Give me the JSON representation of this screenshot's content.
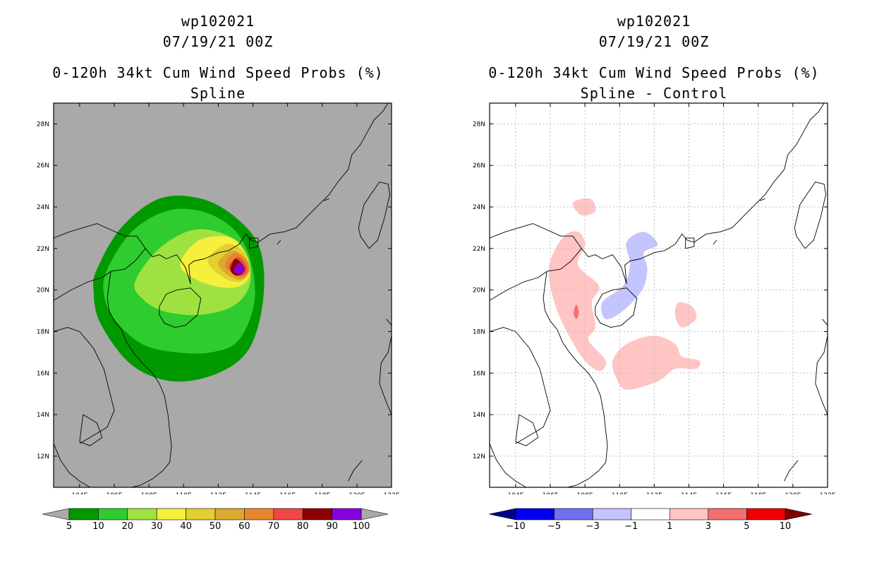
{
  "colors": {
    "background_gray": "#a9a9a9",
    "coast": "#000000",
    "grid": "#c0c0c0"
  },
  "chart_data": [
    {
      "type": "heatmap",
      "storm_id": "wp102021",
      "datetime": "07/19/21 00Z",
      "title": "0-120h 34kt Cum Wind Speed Probs (%)",
      "subtitle": "Spline",
      "x_ticks": [
        "104E",
        "106E",
        "108E",
        "110E",
        "112E",
        "114E",
        "116E",
        "118E",
        "120E",
        "122E"
      ],
      "y_ticks": [
        "28N",
        "26N",
        "24N",
        "22N",
        "20N",
        "18N",
        "16N",
        "14N",
        "12N"
      ],
      "xlim": [
        102.5,
        122
      ],
      "ylim": [
        10.5,
        29
      ],
      "grid": false,
      "colorbar": {
        "labels": [
          "5",
          "10",
          "20",
          "30",
          "40",
          "50",
          "60",
          "70",
          "80",
          "90",
          "100"
        ],
        "colors": [
          "#009900",
          "#2ecc2e",
          "#9ee242",
          "#f4f03c",
          "#e2cf32",
          "#dba830",
          "#e8862b",
          "#ef4747",
          "#8c0000",
          "#8800dd"
        ],
        "under_color": "#a9a9a9",
        "over_color": "#a9a9a9"
      },
      "contours": [
        {
          "level": 5,
          "points": [
            [
              105,
              21
            ],
            [
              106.4,
              23
            ],
            [
              108.6,
              24.4
            ],
            [
              111,
              24.4
            ],
            [
              113,
              23.5
            ],
            [
              114.4,
              22
            ],
            [
              114.6,
              19.6
            ],
            [
              113.8,
              17.2
            ],
            [
              112,
              16
            ],
            [
              109.4,
              15.6
            ],
            [
              107,
              16.4
            ],
            [
              105.2,
              18.4
            ],
            [
              104.8,
              20
            ]
          ]
        },
        {
          "level": 10,
          "points": [
            [
              105.6,
              21
            ],
            [
              107,
              22.8
            ],
            [
              109,
              23.8
            ],
            [
              111,
              23.8
            ],
            [
              112.8,
              23
            ],
            [
              113.8,
              21.6
            ],
            [
              114.1,
              19.5
            ],
            [
              113.2,
              17.6
            ],
            [
              111.6,
              17
            ],
            [
              109.6,
              17
            ],
            [
              107.6,
              17.4
            ],
            [
              106,
              18.6
            ],
            [
              105.4,
              19.8
            ]
          ]
        },
        {
          "level": 20,
          "points": [
            [
              107.2,
              20.4
            ],
            [
              108.6,
              22
            ],
            [
              110.6,
              22.9
            ],
            [
              112.6,
              22.6
            ],
            [
              113.7,
              21.6
            ],
            [
              113.8,
              20.2
            ],
            [
              112.8,
              19.2
            ],
            [
              110.8,
              18.8
            ],
            [
              108.8,
              19
            ],
            [
              107.6,
              19.6
            ]
          ]
        },
        {
          "level": 30,
          "points": [
            [
              109.8,
              21.2
            ],
            [
              110.9,
              22.4
            ],
            [
              112.8,
              22.5
            ],
            [
              113.7,
              21.5
            ],
            [
              113.7,
              20.5
            ],
            [
              112.7,
              20.1
            ],
            [
              111,
              20.4
            ]
          ]
        },
        {
          "level": 40,
          "points": [
            [
              111.4,
              21.4
            ],
            [
              112.4,
              22.2
            ],
            [
              113.4,
              21.9
            ],
            [
              113.8,
              21
            ],
            [
              113.3,
              20.4
            ],
            [
              112.3,
              20.6
            ]
          ]
        },
        {
          "level": 50,
          "points": [
            [
              112,
              21.3
            ],
            [
              112.8,
              21.9
            ],
            [
              113.6,
              21.5
            ],
            [
              113.8,
              20.9
            ],
            [
              113.3,
              20.5
            ],
            [
              112.6,
              20.7
            ]
          ]
        },
        {
          "level": 60,
          "points": [
            [
              112.4,
              21.2
            ],
            [
              113,
              21.8
            ],
            [
              113.7,
              21.3
            ],
            [
              113.7,
              20.8
            ],
            [
              113.2,
              20.6
            ]
          ]
        },
        {
          "level": 70,
          "points": [
            [
              112.6,
              21.1
            ],
            [
              113.1,
              21.6
            ],
            [
              113.6,
              21.2
            ],
            [
              113.6,
              20.8
            ],
            [
              113.1,
              20.7
            ]
          ]
        },
        {
          "level": 80,
          "points": [
            [
              112.7,
              21
            ],
            [
              113,
              21.5
            ],
            [
              113.5,
              21.1
            ],
            [
              113.4,
              20.8
            ],
            [
              113,
              20.7
            ]
          ]
        },
        {
          "level": 90,
          "points": [
            [
              112.9,
              20.9
            ],
            [
              113.2,
              21.3
            ],
            [
              113.5,
              21
            ],
            [
              113.3,
              20.8
            ]
          ]
        }
      ]
    },
    {
      "type": "heatmap",
      "storm_id": "wp102021",
      "datetime": "07/19/21 00Z",
      "title": "0-120h 34kt Cum Wind Speed Probs (%)",
      "subtitle": "Spline - Control",
      "x_ticks": [
        "104E",
        "106E",
        "108E",
        "110E",
        "112E",
        "114E",
        "116E",
        "118E",
        "120E",
        "122E"
      ],
      "y_ticks": [
        "28N",
        "26N",
        "24N",
        "22N",
        "20N",
        "18N",
        "16N",
        "14N",
        "12N"
      ],
      "xlim": [
        102.5,
        122
      ],
      "ylim": [
        10.5,
        29
      ],
      "grid": true,
      "colorbar": {
        "labels": [
          "-10",
          "-5",
          "-3",
          "-1",
          "1",
          "3",
          "5",
          "10"
        ],
        "colors": [
          "#0000ee",
          "#7070f0",
          "#c4c4ff",
          "#ffffff",
          "#ffc4c4",
          "#f27070",
          "#ee0000"
        ],
        "under_color": "#00008b",
        "over_color": "#7f0000"
      },
      "contours": [
        {
          "level": 1,
          "points": [
            [
              106.8,
              22.6
            ],
            [
              107.6,
              22.8
            ],
            [
              108,
              22.2
            ],
            [
              107.6,
              21.2
            ],
            [
              108.8,
              20.2
            ],
            [
              108.4,
              19.4
            ],
            [
              108.6,
              18.2
            ],
            [
              108.2,
              17.6
            ],
            [
              109.2,
              16.6
            ],
            [
              108.8,
              16.1
            ],
            [
              107.8,
              16.8
            ],
            [
              106.6,
              18.6
            ],
            [
              106,
              20.2
            ],
            [
              106,
              21.4
            ]
          ]
        },
        {
          "level": 1,
          "points": [
            [
              107.3,
              24.2
            ],
            [
              108.3,
              24.4
            ],
            [
              108.6,
              23.8
            ],
            [
              107.8,
              23.6
            ]
          ]
        },
        {
          "level": 1,
          "points": [
            [
              109.6,
              16.6
            ],
            [
              110.4,
              17.4
            ],
            [
              112,
              17.8
            ],
            [
              113.2,
              17.4
            ],
            [
              113.6,
              16.8
            ],
            [
              114.6,
              16.6
            ],
            [
              114.4,
              16.2
            ],
            [
              113.2,
              16.2
            ],
            [
              112.2,
              15.6
            ],
            [
              110.4,
              15.2
            ],
            [
              109.8,
              15.8
            ]
          ]
        },
        {
          "level": 1,
          "points": [
            [
              113.4,
              19.4
            ],
            [
              114.2,
              19.2
            ],
            [
              114.4,
              18.6
            ],
            [
              113.6,
              18.2
            ],
            [
              113.2,
              18.8
            ]
          ]
        },
        {
          "level": 3,
          "points": [
            [
              107.5,
              19.3
            ],
            [
              107.65,
              18.9
            ],
            [
              107.5,
              18.6
            ],
            [
              107.35,
              18.9
            ]
          ]
        },
        {
          "level": -1,
          "points": [
            [
              110.4,
              22.3
            ],
            [
              111.4,
              22.8
            ],
            [
              112.2,
              22.2
            ],
            [
              111.4,
              21.8
            ],
            [
              111.6,
              21
            ],
            [
              111.3,
              20
            ],
            [
              110.2,
              19
            ],
            [
              109.2,
              18.6
            ],
            [
              109,
              19.4
            ],
            [
              110.2,
              20.2
            ],
            [
              110.6,
              21.2
            ]
          ]
        }
      ]
    }
  ],
  "coastlines": [
    [
      [
        102.5,
        22.5
      ],
      [
        103.4,
        22.8
      ],
      [
        104.2,
        23.0
      ],
      [
        105.0,
        23.2
      ],
      [
        105.8,
        22.9
      ],
      [
        106.6,
        22.6
      ],
      [
        107.3,
        22.6
      ],
      [
        107.8,
        22.0
      ],
      [
        108.2,
        21.6
      ],
      [
        108.6,
        21.7
      ],
      [
        109.0,
        21.5
      ],
      [
        109.6,
        21.7
      ],
      [
        110.1,
        21.1
      ],
      [
        110.4,
        20.3
      ],
      [
        110.3,
        21.2
      ],
      [
        110.6,
        21.4
      ],
      [
        111.2,
        21.5
      ],
      [
        112.0,
        21.8
      ],
      [
        112.6,
        21.9
      ],
      [
        113.2,
        22.2
      ],
      [
        113.6,
        22.7
      ],
      [
        113.9,
        22.4
      ],
      [
        114.3,
        22.3
      ],
      [
        115.0,
        22.7
      ],
      [
        115.8,
        22.8
      ],
      [
        116.5,
        23.0
      ],
      [
        117.2,
        23.6
      ],
      [
        117.8,
        24.1
      ],
      [
        118.4,
        24.6
      ],
      [
        118.9,
        25.2
      ],
      [
        119.5,
        25.8
      ],
      [
        119.7,
        26.5
      ],
      [
        120.2,
        27.0
      ],
      [
        120.6,
        27.6
      ],
      [
        121.0,
        28.2
      ],
      [
        121.5,
        28.6
      ],
      [
        121.8,
        29.0
      ]
    ],
    [
      [
        102.5,
        19.5
      ],
      [
        103.5,
        20.0
      ],
      [
        104.5,
        20.4
      ],
      [
        105.3,
        20.6
      ],
      [
        105.8,
        20.9
      ],
      [
        106.6,
        21.0
      ],
      [
        107.2,
        21.4
      ],
      [
        107.8,
        22.0
      ]
    ],
    [
      [
        105.8,
        20.9
      ],
      [
        105.7,
        20.3
      ],
      [
        105.6,
        19.6
      ],
      [
        105.7,
        19.0
      ],
      [
        106.0,
        18.5
      ],
      [
        106.4,
        18.1
      ],
      [
        106.7,
        17.5
      ],
      [
        107.1,
        17.0
      ],
      [
        107.6,
        16.5
      ],
      [
        108.2,
        16.0
      ],
      [
        108.6,
        15.5
      ],
      [
        108.9,
        14.9
      ],
      [
        109.1,
        14.0
      ],
      [
        109.2,
        13.2
      ],
      [
        109.3,
        12.5
      ],
      [
        109.2,
        11.7
      ],
      [
        108.8,
        11.3
      ],
      [
        108.2,
        10.9
      ],
      [
        107.5,
        10.6
      ],
      [
        107.0,
        10.5
      ]
    ],
    [
      [
        102.5,
        12.6
      ],
      [
        102.9,
        11.8
      ],
      [
        103.4,
        11.2
      ],
      [
        104.0,
        10.8
      ],
      [
        104.6,
        10.5
      ]
    ],
    [
      [
        102.5,
        18.0
      ],
      [
        103.3,
        18.2
      ],
      [
        104.0,
        18.0
      ],
      [
        104.8,
        17.2
      ],
      [
        105.4,
        16.2
      ],
      [
        105.7,
        15.2
      ],
      [
        106.0,
        14.2
      ],
      [
        105.6,
        13.4
      ],
      [
        104.8,
        13.0
      ],
      [
        104.0,
        12.6
      ]
    ],
    [
      [
        108.6,
        19.2
      ],
      [
        109.0,
        19.8
      ],
      [
        109.6,
        20.0
      ],
      [
        110.4,
        20.1
      ],
      [
        111.0,
        19.6
      ],
      [
        110.8,
        18.8
      ],
      [
        110.1,
        18.3
      ],
      [
        109.5,
        18.2
      ],
      [
        108.9,
        18.4
      ],
      [
        108.6,
        18.8
      ],
      [
        108.6,
        19.2
      ]
    ],
    [
      [
        120.1,
        23.0
      ],
      [
        120.2,
        22.6
      ],
      [
        120.7,
        22.0
      ],
      [
        121.2,
        22.4
      ],
      [
        121.6,
        23.5
      ],
      [
        121.9,
        24.6
      ],
      [
        121.8,
        25.1
      ],
      [
        121.3,
        25.2
      ],
      [
        120.8,
        24.6
      ],
      [
        120.4,
        24.1
      ],
      [
        120.1,
        23.0
      ]
    ],
    [
      [
        113.8,
        22.0
      ],
      [
        114.3,
        22.1
      ],
      [
        114.3,
        22.5
      ],
      [
        113.8,
        22.5
      ],
      [
        113.8,
        22.0
      ]
    ],
    [
      [
        104.2,
        14.0
      ],
      [
        105.0,
        13.6
      ],
      [
        105.3,
        12.9
      ],
      [
        104.6,
        12.5
      ],
      [
        104.0,
        12.7
      ],
      [
        104.2,
        14.0
      ]
    ],
    [
      [
        121.7,
        18.6
      ],
      [
        122.0,
        18.3
      ],
      [
        122.0,
        17.8
      ],
      [
        121.8,
        17.0
      ],
      [
        121.4,
        16.5
      ],
      [
        121.3,
        15.5
      ],
      [
        121.7,
        14.6
      ],
      [
        122.0,
        14.0
      ]
    ],
    [
      [
        119.5,
        10.8
      ],
      [
        119.8,
        11.3
      ],
      [
        120.3,
        11.8
      ]
    ],
    [
      [
        115.4,
        22.2
      ],
      [
        115.6,
        22.4
      ]
    ],
    [
      [
        118.1,
        24.3
      ],
      [
        118.4,
        24.4
      ]
    ]
  ]
}
